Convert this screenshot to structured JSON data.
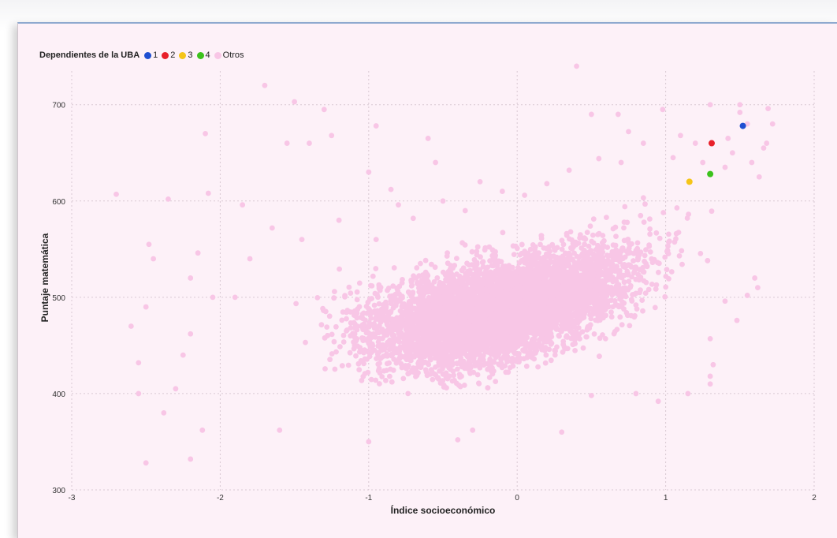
{
  "chart_data": {
    "type": "scatter",
    "title": "",
    "xlabel": "Índice socioeconómico",
    "ylabel": "Puntaje matemática",
    "xlim": [
      -3,
      2
    ],
    "ylim": [
      300,
      720
    ],
    "x_ticks": [
      "-3",
      "-2",
      "-1",
      "0",
      "1",
      "2"
    ],
    "y_ticks": [
      "300",
      "400",
      "500",
      "600",
      "700"
    ],
    "grid": true,
    "legend": {
      "title": "Dependientes de la UBA",
      "placement": "top-left",
      "entries": [
        {
          "label": "1",
          "color": "#1f4fd1"
        },
        {
          "label": "2",
          "color": "#e8202a"
        },
        {
          "label": "3",
          "color": "#f5c518"
        },
        {
          "label": "4",
          "color": "#3cc21c"
        },
        {
          "label": "Otros",
          "color": "#f8c6e6"
        }
      ]
    },
    "series": [
      {
        "name": "1",
        "color": "#1f4fd1",
        "points": [
          [
            1.52,
            678
          ]
        ]
      },
      {
        "name": "2",
        "color": "#e8202a",
        "points": [
          [
            1.31,
            660
          ]
        ]
      },
      {
        "name": "3",
        "color": "#f5c518",
        "points": [
          [
            1.16,
            620
          ]
        ]
      },
      {
        "name": "4",
        "color": "#3cc21c",
        "points": [
          [
            1.3,
            628
          ]
        ]
      },
      {
        "name": "Otros",
        "color": "#f8c6e6",
        "points": [
          [
            -2.7,
            607
          ],
          [
            -2.55,
            400
          ],
          [
            -2.5,
            328
          ],
          [
            -2.48,
            555
          ],
          [
            -2.5,
            490
          ],
          [
            -2.35,
            602
          ],
          [
            -2.3,
            405
          ],
          [
            -2.2,
            332
          ],
          [
            -2.1,
            670
          ],
          [
            -2.08,
            608
          ],
          [
            -1.7,
            720
          ],
          [
            -1.5,
            703
          ],
          [
            -1.3,
            695
          ],
          [
            -1.25,
            668
          ],
          [
            -0.95,
            678
          ],
          [
            -0.6,
            665
          ],
          [
            -0.55,
            640
          ],
          [
            0.4,
            740
          ],
          [
            -1.0,
            630
          ],
          [
            -0.85,
            612
          ],
          [
            -0.25,
            620
          ],
          [
            -1.85,
            596
          ],
          [
            -1.55,
            660
          ],
          [
            -1.4,
            660
          ],
          [
            -2.05,
            500
          ],
          [
            -2.2,
            462
          ],
          [
            -2.25,
            440
          ],
          [
            -2.38,
            380
          ],
          [
            -2.12,
            362
          ],
          [
            -1.6,
            362
          ],
          [
            -1.0,
            350
          ],
          [
            -0.4,
            352
          ],
          [
            -0.3,
            362
          ],
          [
            0.3,
            360
          ],
          [
            0.5,
            398
          ],
          [
            0.8,
            400
          ],
          [
            0.95,
            392
          ],
          [
            1.15,
            400
          ],
          [
            1.3,
            410
          ],
          [
            1.3,
            418
          ],
          [
            1.3,
            457
          ],
          [
            1.32,
            430
          ],
          [
            1.4,
            496
          ],
          [
            1.48,
            476
          ],
          [
            1.55,
            502
          ],
          [
            1.6,
            520
          ],
          [
            1.62,
            510
          ],
          [
            1.72,
            680
          ],
          [
            1.69,
            696
          ],
          [
            1.5,
            700
          ],
          [
            1.5,
            692
          ],
          [
            1.55,
            680
          ],
          [
            1.42,
            665
          ],
          [
            1.3,
            700
          ],
          [
            0.98,
            695
          ],
          [
            1.1,
            668
          ],
          [
            0.75,
            672
          ],
          [
            0.68,
            690
          ],
          [
            0.5,
            690
          ],
          [
            1.2,
            660
          ],
          [
            -2.55,
            432
          ],
          [
            -2.6,
            470
          ],
          [
            -2.45,
            540
          ],
          [
            -2.2,
            520
          ],
          [
            -2.15,
            546
          ],
          [
            -1.9,
            500
          ],
          [
            -1.8,
            540
          ],
          [
            -1.65,
            572
          ],
          [
            -1.45,
            560
          ],
          [
            -1.2,
            580
          ],
          [
            -0.95,
            560
          ],
          [
            -0.8,
            596
          ],
          [
            -0.7,
            582
          ],
          [
            -0.5,
            600
          ],
          [
            -0.35,
            590
          ],
          [
            -0.1,
            610
          ],
          [
            0.05,
            606
          ],
          [
            0.2,
            618
          ],
          [
            0.35,
            632
          ],
          [
            0.55,
            644
          ],
          [
            0.7,
            640
          ],
          [
            0.85,
            660
          ],
          [
            1.05,
            645
          ],
          [
            1.25,
            640
          ],
          [
            1.4,
            635
          ],
          [
            1.45,
            650
          ],
          [
            1.58,
            640
          ],
          [
            1.63,
            625
          ],
          [
            1.66,
            655
          ],
          [
            1.68,
            660
          ]
        ]
      }
    ],
    "bulk_cloud": {
      "series": "Otros",
      "description_points": "Dense cloud following trend",
      "x_min": -2.0,
      "x_max": 1.6,
      "count": 6000,
      "intercept": 490,
      "slope": 42,
      "spread": 42
    }
  }
}
